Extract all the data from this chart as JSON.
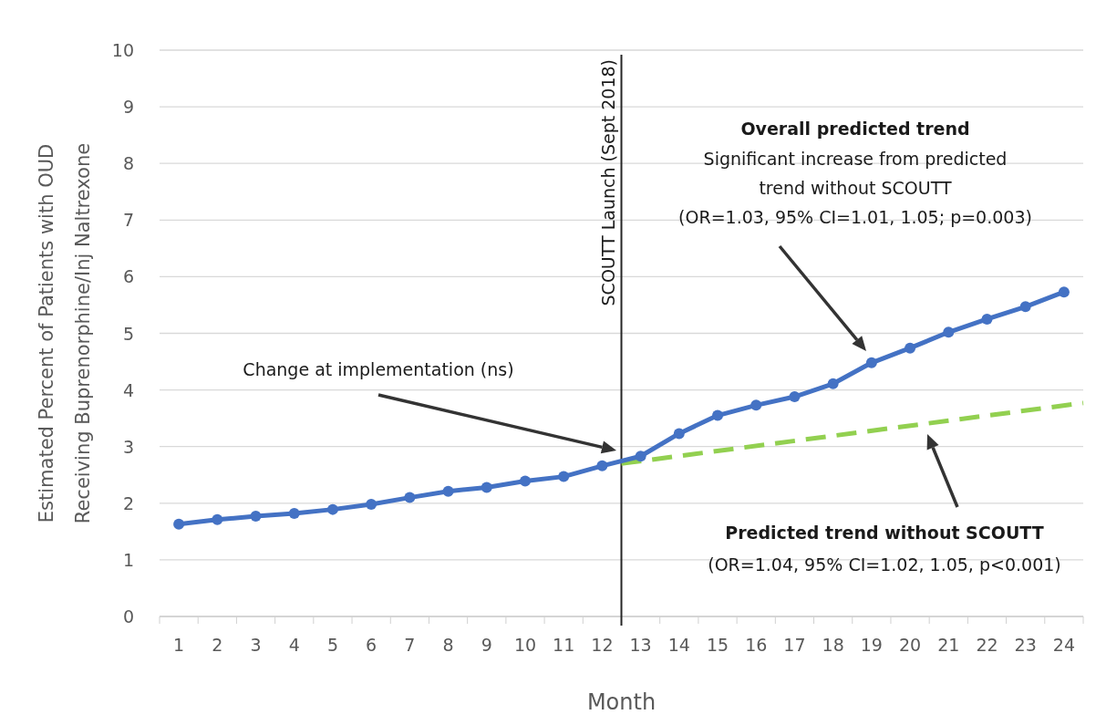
{
  "chart_data": {
    "type": "line",
    "xlabel": "Month",
    "ylabel": "Estimated Percent of Patients with OUD Receiving Buprenorphine/Inj Naltrexone",
    "x": [
      1,
      2,
      3,
      4,
      5,
      6,
      7,
      8,
      9,
      10,
      11,
      12,
      13,
      14,
      15,
      16,
      17,
      18,
      19,
      20,
      21,
      22,
      23,
      24
    ],
    "xlim": [
      0.5,
      24.5
    ],
    "xticks": [
      1,
      2,
      3,
      4,
      5,
      6,
      7,
      8,
      9,
      10,
      11,
      12,
      13,
      14,
      15,
      16,
      17,
      18,
      19,
      20,
      21,
      22,
      23,
      24
    ],
    "ylim": [
      0,
      10
    ],
    "yticks": [
      0,
      1,
      2,
      3,
      4,
      5,
      6,
      7,
      8,
      9,
      10
    ],
    "grid": "y",
    "series": [
      {
        "color": "#4472c4",
        "marker": "circle",
        "line_style": "solid",
        "values": [
          1.63,
          1.71,
          1.77,
          1.82,
          1.89,
          1.98,
          2.1,
          2.21,
          2.28,
          2.39,
          2.47,
          2.66,
          2.83,
          3.23,
          3.55,
          3.73,
          3.88,
          4.11,
          4.48,
          4.74,
          5.02,
          5.25,
          5.47,
          5.73
        ]
      },
      {
        "color": "#92d050",
        "marker": "none",
        "line_style": "dashed",
        "x": [
          12.5,
          24.5
        ],
        "values": [
          2.7,
          3.77
        ]
      }
    ],
    "ref_lines": [
      {
        "axis": "x",
        "value": 12.5,
        "label": "SCOUTT Launch (Sept 2018)",
        "color": "#262626"
      }
    ],
    "annotations": [
      "Change at implementation  (ns)",
      "Overall predicted trend",
      "Significant increase from predicted trend without SCOUTT (OR=1.03, 95% CI=1.01, 1.05; p=0.003)",
      "Predicted trend without SCOUTT",
      "(OR=1.04, 95% CI=1.02, 1.05, p<0.001)"
    ]
  }
}
